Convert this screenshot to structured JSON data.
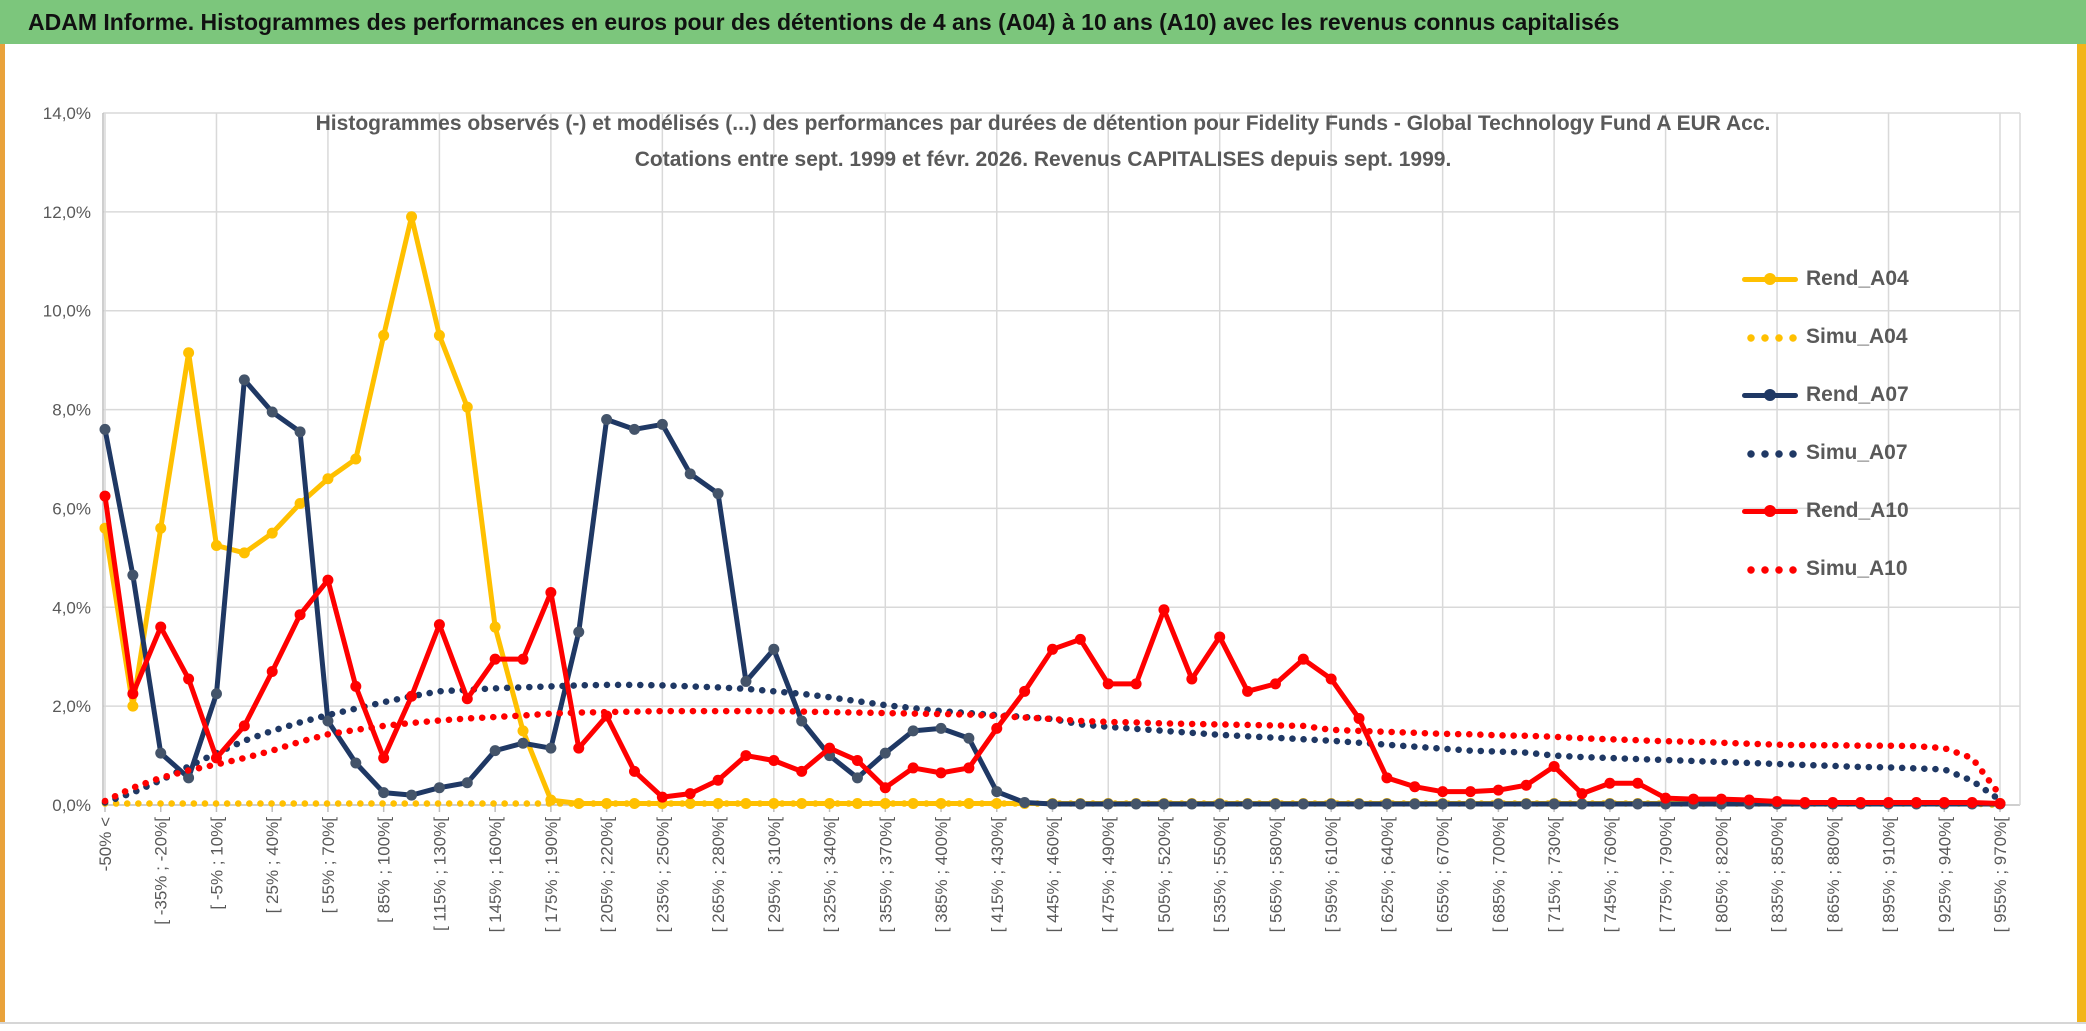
{
  "header": {
    "title": "ADAM Informe. Histogrammes des performances en euros pour des détentions de 4 ans (A04) à 10 ans (A10) avec les revenus connus capitalisés"
  },
  "chart_data": {
    "type": "line",
    "title_line1": "Histogrammes observés (-) et modélisés (...) des performances par durées de détention pour Fidelity Funds - Global Technology Fund A EUR Acc.",
    "title_line2": "Cotations entre sept. 1999 et févr. 2026. Revenus CAPITALISES depuis sept. 1999.",
    "ylim": [
      0,
      14
    ],
    "y_ticks": [
      "0,0%",
      "2,0%",
      "4,0%",
      "6,0%",
      "8,0%",
      "10,0%",
      "12,0%",
      "14,0%"
    ],
    "num_categories": 69,
    "x_label_every_other_category": true,
    "x_tick_labels": [
      "-50% <",
      "[ -35% ; -20%[",
      "[ -5% ; 10%[",
      "[ 25% ; 40%[",
      "[ 55% ; 70%[",
      "[ 85% ; 100%[",
      "[ 115% ; 130%[",
      "[ 145% ; 160%[",
      "[ 175% ; 190%[",
      "[ 205% ; 220%[",
      "[ 235% ; 250%[",
      "[ 265% ; 280%[",
      "[ 295% ; 310%[",
      "[ 325% ; 340%[",
      "[ 355% ; 370%[",
      "[ 385% ; 400%[",
      "[ 415% ; 430%[",
      "[ 445% ; 460%[",
      "[ 475% ; 490%[",
      "[ 505% ; 520%[",
      "[ 535% ; 550%[",
      "[ 565% ; 580%[",
      "[ 595% ; 610%[",
      "[ 625% ; 640%[",
      "[ 655% ; 670%[",
      "[ 685% ; 700%[",
      "[ 715% ; 730%[",
      "[ 745% ; 760%[",
      "[ 775% ; 790%[",
      "[ 805% ; 820%[",
      "[ 835% ; 850%[",
      "[ 865% ; 880%[",
      "[ 895% ; 910%[",
      "[ 925% ; 940%[",
      "[ 955% ; 970%["
    ],
    "grid": true,
    "legend_position": "right",
    "colors": {
      "gold": "#FFC000",
      "navy": "#1F3864",
      "navy_marker": "#44546A",
      "red": "#FF0000",
      "grid": "#D9D9D9",
      "axis_line": "#BFBFBF",
      "axis_text": "#595959",
      "header_green": "#7CC67C",
      "accent_gold": "#F2B51A"
    },
    "series": [
      {
        "name": "Rend_A04",
        "style": "solid",
        "color": "#FFC000",
        "values": [
          5.6,
          2.0,
          5.6,
          9.15,
          5.25,
          5.1,
          5.5,
          6.1,
          6.6,
          7.0,
          9.5,
          11.9,
          9.5,
          8.05,
          3.6,
          1.5,
          0.1,
          0.03,
          0.03,
          0.03,
          0.03,
          0.03,
          0.03,
          0.03,
          0.03,
          0.03,
          0.03,
          0.03,
          0.03,
          0.03,
          0.03,
          0.03,
          0.03,
          0.03,
          0.03,
          0.03,
          0.03,
          0.03,
          0.03,
          0.03,
          0.03,
          0.03,
          0.03,
          0.03,
          0.03,
          0.03,
          0.03,
          0.03,
          0.03,
          0.03,
          0.03,
          0.03,
          0.03,
          0.03,
          0.03,
          0.03,
          0.03,
          0.03,
          0.03,
          0.03,
          0.03,
          0.03,
          0.03,
          0.03,
          0.03,
          0.03,
          0.03,
          0.03,
          0.03
        ]
      },
      {
        "name": "Simu_A04",
        "style": "dotted",
        "color": "#FFC000",
        "values": [
          0.03,
          0.03,
          0.03,
          0.03,
          0.03,
          0.03,
          0.03,
          0.03,
          0.03,
          0.03,
          0.03,
          0.03,
          0.03,
          0.03,
          0.03,
          0.03,
          0.03,
          0.03,
          0.03,
          0.03,
          0.03,
          0.03,
          0.03,
          0.03,
          0.03,
          0.03,
          0.03,
          0.03,
          0.03,
          0.03,
          0.03,
          0.03,
          0.03,
          0.03,
          0.03,
          0.03,
          0.03,
          0.03,
          0.03,
          0.03,
          0.03,
          0.03,
          0.03,
          0.03,
          0.03,
          0.03,
          0.03,
          0.03,
          0.03,
          0.03,
          0.03,
          0.03,
          0.03,
          0.03,
          0.03,
          0.03,
          0.03,
          0.03,
          0.03,
          0.03,
          0.03,
          0.03,
          0.03,
          0.03,
          0.03,
          0.03,
          0.03,
          0.03,
          0.0
        ]
      },
      {
        "name": "Rend_A07",
        "style": "solid",
        "color": "#1F3864",
        "marker_color": "#44546A",
        "values": [
          7.6,
          4.65,
          1.05,
          0.55,
          2.25,
          8.6,
          7.95,
          7.55,
          1.7,
          0.85,
          0.25,
          0.2,
          0.35,
          0.45,
          1.1,
          1.25,
          1.15,
          3.5,
          7.8,
          7.6,
          7.7,
          6.7,
          6.3,
          2.5,
          3.15,
          1.7,
          1.0,
          0.55,
          1.05,
          1.5,
          1.55,
          1.35,
          0.27,
          0.05,
          0.02,
          0.02,
          0.02,
          0.02,
          0.02,
          0.02,
          0.02,
          0.02,
          0.02,
          0.02,
          0.02,
          0.02,
          0.02,
          0.02,
          0.02,
          0.02,
          0.02,
          0.02,
          0.02,
          0.02,
          0.02,
          0.02,
          0.02,
          0.02,
          0.02,
          0.02,
          0.02,
          0.02,
          0.02,
          0.02,
          0.02,
          0.02,
          0.02,
          0.02,
          0.02
        ]
      },
      {
        "name": "Simu_A07",
        "style": "dotted",
        "color": "#1F3864",
        "values": [
          0.05,
          0.25,
          0.5,
          0.78,
          1.05,
          1.3,
          1.5,
          1.67,
          1.82,
          1.95,
          2.08,
          2.2,
          2.3,
          2.33,
          2.36,
          2.38,
          2.4,
          2.42,
          2.43,
          2.43,
          2.42,
          2.4,
          2.38,
          2.35,
          2.3,
          2.25,
          2.18,
          2.1,
          2.02,
          1.96,
          1.9,
          1.86,
          1.82,
          1.78,
          1.74,
          1.63,
          1.58,
          1.54,
          1.5,
          1.46,
          1.42,
          1.39,
          1.36,
          1.33,
          1.3,
          1.26,
          1.22,
          1.18,
          1.14,
          1.1,
          1.08,
          1.06,
          1.0,
          0.97,
          0.95,
          0.93,
          0.91,
          0.89,
          0.87,
          0.85,
          0.83,
          0.81,
          0.79,
          0.77,
          0.76,
          0.74,
          0.72,
          0.49,
          0.1
        ]
      },
      {
        "name": "Rend_A10",
        "style": "solid",
        "color": "#FF0000",
        "values": [
          6.25,
          2.25,
          3.6,
          2.55,
          0.95,
          1.6,
          2.7,
          3.85,
          4.55,
          2.4,
          0.95,
          2.2,
          3.65,
          2.15,
          2.95,
          2.95,
          4.3,
          1.15,
          1.8,
          0.68,
          0.16,
          0.23,
          0.5,
          1.0,
          0.9,
          0.68,
          1.15,
          0.9,
          0.35,
          0.75,
          0.65,
          0.75,
          1.55,
          2.3,
          3.15,
          3.35,
          2.45,
          2.45,
          3.95,
          2.55,
          3.4,
          2.3,
          2.45,
          2.95,
          2.55,
          1.75,
          0.55,
          0.37,
          0.27,
          0.27,
          0.3,
          0.4,
          0.78,
          0.23,
          0.44,
          0.44,
          0.14,
          0.12,
          0.12,
          0.1,
          0.07,
          0.05,
          0.05,
          0.05,
          0.05,
          0.05,
          0.05,
          0.05,
          0.03
        ]
      },
      {
        "name": "Simu_A10",
        "style": "dotted",
        "color": "#FF0000",
        "values": [
          0.08,
          0.35,
          0.55,
          0.7,
          0.82,
          0.95,
          1.1,
          1.28,
          1.43,
          1.52,
          1.6,
          1.66,
          1.71,
          1.75,
          1.78,
          1.81,
          1.85,
          1.87,
          1.88,
          1.89,
          1.9,
          1.9,
          1.9,
          1.9,
          1.9,
          1.89,
          1.88,
          1.87,
          1.86,
          1.85,
          1.84,
          1.83,
          1.8,
          1.77,
          1.74,
          1.7,
          1.68,
          1.67,
          1.65,
          1.64,
          1.63,
          1.62,
          1.61,
          1.6,
          1.52,
          1.5,
          1.48,
          1.46,
          1.44,
          1.43,
          1.41,
          1.4,
          1.38,
          1.35,
          1.33,
          1.31,
          1.29,
          1.28,
          1.26,
          1.24,
          1.22,
          1.21,
          1.21,
          1.2,
          1.2,
          1.19,
          1.15,
          0.95,
          0.2
        ]
      }
    ]
  }
}
